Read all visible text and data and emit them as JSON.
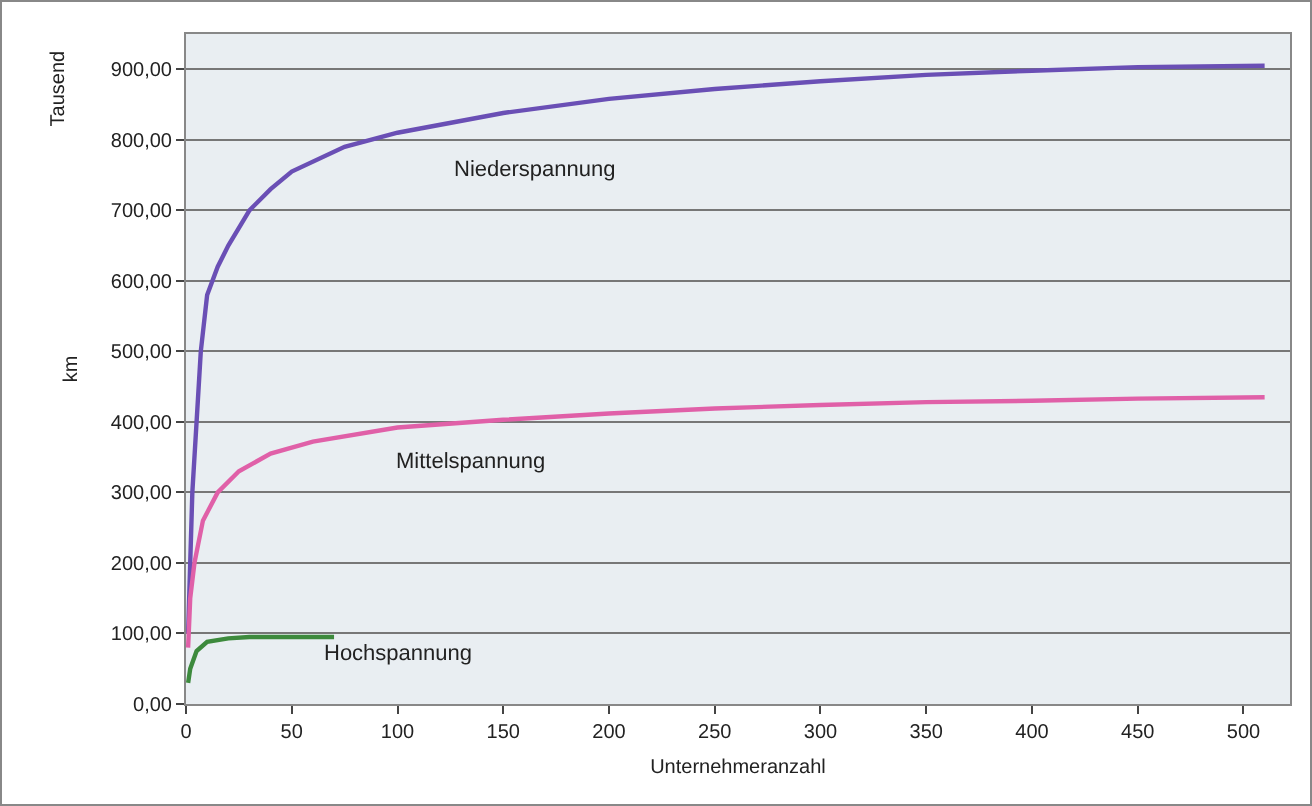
{
  "chart_data": {
    "type": "line",
    "xlabel": "Unternehmeranzahl",
    "ylabel": "km",
    "annotations": [
      "Tausend"
    ],
    "xlim": [
      0,
      522
    ],
    "xticks": [
      0,
      50,
      100,
      150,
      200,
      250,
      300,
      350,
      400,
      450,
      500
    ],
    "ylim": [
      0,
      950
    ],
    "yticks": [
      {
        "value": 0,
        "label": "0,00"
      },
      {
        "value": 100,
        "label": "100,00"
      },
      {
        "value": 200,
        "label": "200,00"
      },
      {
        "value": 300,
        "label": "300,00"
      },
      {
        "value": 400,
        "label": "400,00"
      },
      {
        "value": 500,
        "label": "500,00"
      },
      {
        "value": 600,
        "label": "600,00"
      },
      {
        "value": 700,
        "label": "700,00"
      },
      {
        "value": 800,
        "label": "800,00"
      },
      {
        "value": 900,
        "label": "900,00"
      }
    ],
    "grid": "y",
    "legend": false,
    "marker": "none",
    "line_style": "solid",
    "series": [
      {
        "name": "Niederspannung",
        "color": "#6a4fb5",
        "x": [
          1,
          2,
          3,
          5,
          7,
          10,
          15,
          20,
          30,
          40,
          50,
          75,
          100,
          150,
          200,
          250,
          300,
          350,
          400,
          450,
          510
        ],
        "values": [
          100,
          200,
          300,
          400,
          500,
          580,
          620,
          650,
          700,
          730,
          755,
          790,
          810,
          838,
          858,
          872,
          883,
          892,
          898,
          903,
          905
        ]
      },
      {
        "name": "Mittelspannung",
        "color": "#e060a8",
        "x": [
          1,
          2,
          4,
          8,
          15,
          25,
          40,
          60,
          100,
          150,
          200,
          250,
          300,
          350,
          400,
          450,
          510
        ],
        "values": [
          80,
          150,
          200,
          260,
          300,
          330,
          355,
          372,
          392,
          403,
          412,
          419,
          424,
          428,
          430,
          433,
          435
        ]
      },
      {
        "name": "Hochspannung",
        "color": "#3d8a3d",
        "x": [
          1,
          2,
          5,
          10,
          20,
          30,
          50,
          70
        ],
        "values": [
          30,
          50,
          75,
          88,
          93,
          95,
          95,
          95
        ]
      }
    ]
  }
}
